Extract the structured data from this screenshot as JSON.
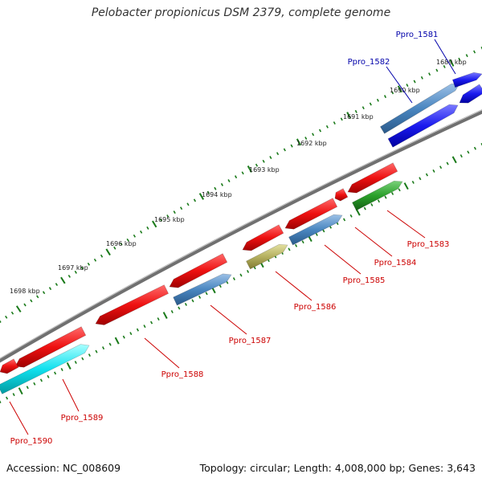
{
  "title": "Pelobacter propionicus DSM 2379, complete genome",
  "footer": {
    "accession": "Accession: NC_008609",
    "topology": "Topology: circular; Length: 4,008,000 bp; Genes: 3,643"
  },
  "colors": {
    "backbone": "#808080",
    "tick": "#1a7a1a",
    "forward_label": "#0000aa",
    "reverse_label": "#cc0000"
  },
  "scale_labels": [
    "1689 kbp",
    "1690 kbp",
    "1691 kbp",
    "1692 kbp",
    "1693 kbp",
    "1694 kbp",
    "1695 kbp",
    "1696 kbp",
    "1697 kbp",
    "1698 kbp"
  ],
  "genes": [
    {
      "name": "Ppro_1581",
      "strand": "forward",
      "color": "#1a1aee"
    },
    {
      "name": "Ppro_1582",
      "strand": "forward",
      "color": "#4a7fc0"
    },
    {
      "name": "Ppro_1583",
      "strand": "reverse",
      "color": "#2aa02a"
    },
    {
      "name": "Ppro_1584",
      "strand": "reverse",
      "color": "#ee1111"
    },
    {
      "name": "Ppro_1585",
      "strand": "reverse",
      "color": "#4a86c0"
    },
    {
      "name": "Ppro_1586",
      "strand": "reverse",
      "color": "#b5b060"
    },
    {
      "name": "Ppro_1587",
      "strand": "reverse",
      "color": "#4a86c0"
    },
    {
      "name": "Ppro_1588",
      "strand": "reverse",
      "color": "#ee1111"
    },
    {
      "name": "Ppro_1589",
      "strand": "reverse",
      "color": "#11e0ee"
    },
    {
      "name": "Ppro_1590",
      "strand": "reverse",
      "color": "#ee1111"
    }
  ]
}
